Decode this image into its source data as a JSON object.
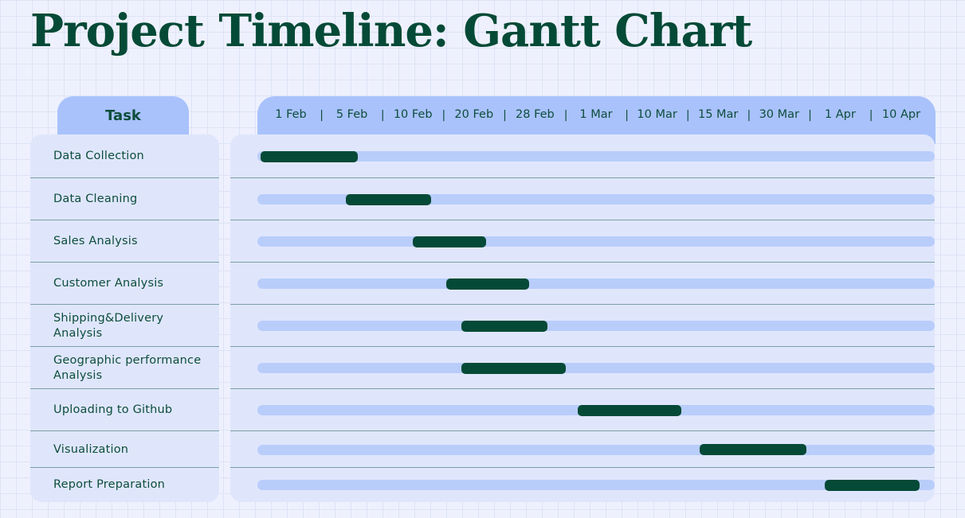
{
  "title": "Project Timeline: Gantt Chart",
  "task_header": "Task",
  "colors": {
    "title": "#044a36",
    "bar": "#044a36",
    "track": "#b9cdfb",
    "header": "#a9c2fc",
    "panel": "#dfe6fc"
  },
  "chart_data": {
    "type": "gantt",
    "title": "Project Timeline: Gantt Chart",
    "xlabel": "",
    "ylabel": "Task",
    "time_ticks": [
      "1 Feb",
      "5 Feb",
      "10 Feb",
      "20 Feb",
      "28 Feb",
      "1 Mar",
      "10 Mar",
      "15 Mar",
      "30 Mar",
      "1 Apr",
      "10 Apr"
    ],
    "tick_positions": [
      0,
      1,
      2,
      3,
      4,
      5,
      6,
      7,
      8,
      9,
      10
    ],
    "axis_range": [
      -0.55,
      10.55
    ],
    "tasks": [
      {
        "name": "Data Collection",
        "start": -0.5,
        "end": 1.1
      },
      {
        "name": "Data Cleaning",
        "start": 0.9,
        "end": 2.3
      },
      {
        "name": "Sales Analysis",
        "start": 2.0,
        "end": 3.2
      },
      {
        "name": "Customer Analysis",
        "start": 2.55,
        "end": 3.9
      },
      {
        "name": "Shipping&Delivery Analysis",
        "start": 2.8,
        "end": 4.2
      },
      {
        "name": "Geographic performance Analysis",
        "start": 2.8,
        "end": 4.5
      },
      {
        "name": "Uploading to Github",
        "start": 4.7,
        "end": 6.4
      },
      {
        "name": "Visualization",
        "start": 6.7,
        "end": 8.45
      },
      {
        "name": "Report Preparation",
        "start": 8.75,
        "end": 10.3
      }
    ]
  }
}
